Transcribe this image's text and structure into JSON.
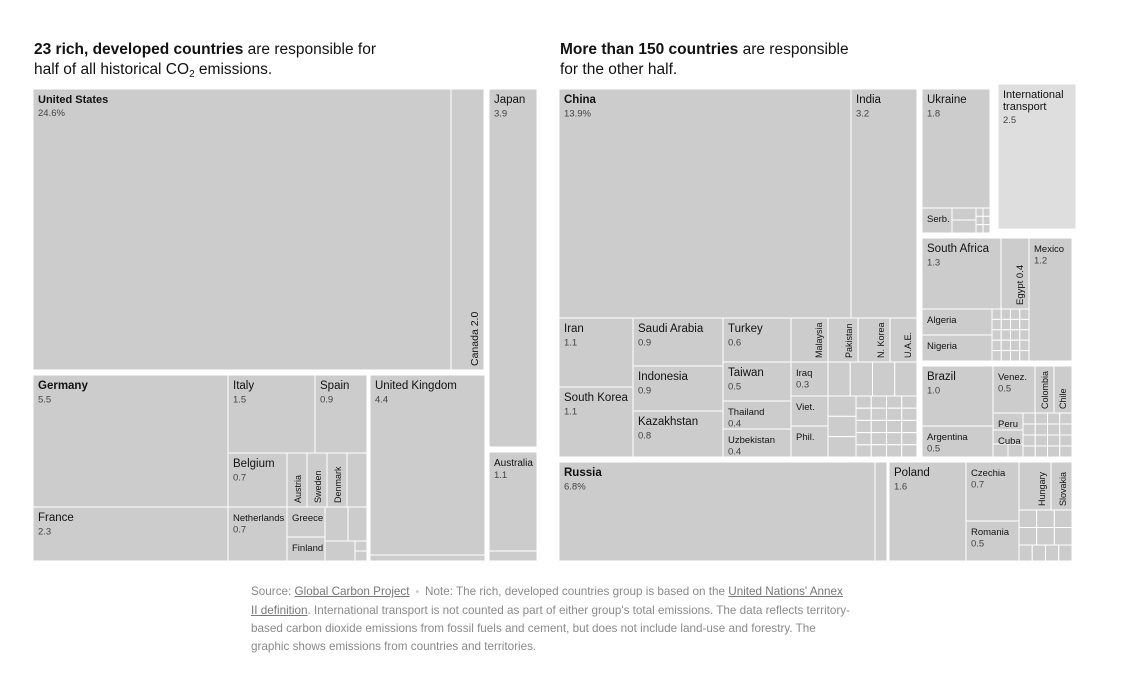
{
  "headline_left": {
    "bold": "23 rich, developed countries",
    "rest_1": " are responsible for half of all historical CO",
    "sub": "2",
    "rest_2": " emissions."
  },
  "headline_right": {
    "bold": "More than 150 countries",
    "rest": " are responsible for the other half."
  },
  "footnote": {
    "source_label": "Source: ",
    "source_link": "Global Carbon Project",
    "separator": "•",
    "note_1": "Note: The rich, developed countries group is based on the ",
    "note_link": "United Nations' Annex II definition",
    "note_2": ". International transport is not counted as part of either group's total emissions. The data reflects territory-based carbon dioxide emissions from fossil fuels and cement, but does not include land-use and forestry. The graphic shows emissions from countries and territories."
  },
  "colors": {
    "tile": "#cccccc",
    "tile_light": "#dedede",
    "border": "#ffffff",
    "text": "#121212",
    "value": "#444444"
  },
  "chart_data": {
    "type": "treemap",
    "unit": "% of historical CO2 emissions",
    "groups": [
      {
        "name": "23 rich, developed countries",
        "items": [
          {
            "label": "United States",
            "value": "24.6%",
            "bold": true
          },
          {
            "label": "Canada",
            "value": "2.0"
          },
          {
            "label": "Japan",
            "value": "3.9"
          },
          {
            "label": "Australia",
            "value": "1.1"
          },
          {
            "label": "Germany",
            "value": "5.5",
            "bold": true
          },
          {
            "label": "France",
            "value": "2.3"
          },
          {
            "label": "Italy",
            "value": "1.5"
          },
          {
            "label": "Spain",
            "value": "0.9"
          },
          {
            "label": "United Kingdom",
            "value": "4.4"
          },
          {
            "label": "Belgium",
            "value": "0.7"
          },
          {
            "label": "Netherlands",
            "value": "0.7"
          },
          {
            "label": "Austria"
          },
          {
            "label": "Sweden"
          },
          {
            "label": "Denmark"
          },
          {
            "label": "Greece"
          },
          {
            "label": "Finland"
          }
        ]
      },
      {
        "name": "More than 150 countries",
        "items": [
          {
            "label": "China",
            "value": "13.9%",
            "bold": true
          },
          {
            "label": "India",
            "value": "3.2"
          },
          {
            "label": "Ukraine",
            "value": "1.8"
          },
          {
            "label": "International transport",
            "value": "2.5"
          },
          {
            "label": "Serb."
          },
          {
            "label": "South Africa",
            "value": "1.3"
          },
          {
            "label": "Egypt",
            "value": "0.4"
          },
          {
            "label": "Mexico",
            "value": "1.2"
          },
          {
            "label": "Iran",
            "value": "1.1"
          },
          {
            "label": "Saudi Arabia",
            "value": "0.9"
          },
          {
            "label": "Turkey",
            "value": "0.6"
          },
          {
            "label": "Malaysia"
          },
          {
            "label": "Pakistan"
          },
          {
            "label": "N. Korea"
          },
          {
            "label": "U.A.E."
          },
          {
            "label": "Indonesia",
            "value": "0.9"
          },
          {
            "label": "Taiwan",
            "value": "0.5"
          },
          {
            "label": "Iraq",
            "value": "0.3"
          },
          {
            "label": "South Korea",
            "value": "1.1"
          },
          {
            "label": "Thailand",
            "value": "0.4"
          },
          {
            "label": "Viet."
          },
          {
            "label": "Kazakhstan",
            "value": "0.8"
          },
          {
            "label": "Uzbekistan",
            "value": "0.4"
          },
          {
            "label": "Phil."
          },
          {
            "label": "Algeria"
          },
          {
            "label": "Nigeria"
          },
          {
            "label": "Brazil",
            "value": "1.0"
          },
          {
            "label": "Venez.",
            "value": "0.5"
          },
          {
            "label": "Colombia"
          },
          {
            "label": "Chile"
          },
          {
            "label": "Peru"
          },
          {
            "label": "Cuba"
          },
          {
            "label": "Argentina",
            "value": "0.5"
          },
          {
            "label": "Russia",
            "value": "6.8%",
            "bold": true
          },
          {
            "label": "Poland",
            "value": "1.6"
          },
          {
            "label": "Czechia",
            "value": "0.7"
          },
          {
            "label": "Hungary"
          },
          {
            "label": "Slovakia"
          },
          {
            "label": "Romania",
            "value": "0.5"
          }
        ]
      }
    ]
  }
}
